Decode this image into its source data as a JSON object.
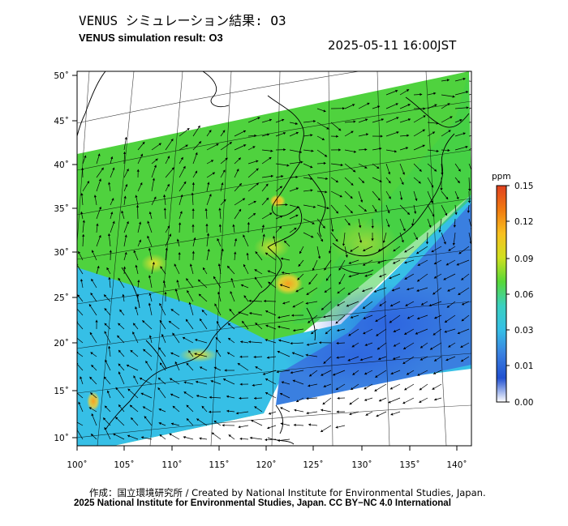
{
  "title_jp": "VENUS シミュレーション結果: O3",
  "title_en": "VENUS simulation result: O3",
  "timestamp": "2025-05-11 16:00JST",
  "map": {
    "lon_ticks": [
      "100˚",
      "105˚",
      "110˚",
      "115˚",
      "120˚",
      "125˚",
      "130˚",
      "135˚",
      "140˚"
    ],
    "lat_ticks": [
      "10˚",
      "15˚",
      "20˚",
      "25˚",
      "30˚",
      "35˚",
      "40˚",
      "45˚",
      "50˚"
    ],
    "lon_range": [
      100,
      141
    ],
    "lat_range": [
      9,
      50.5
    ],
    "colors": {
      "background_polluted": "#58d838",
      "background_clean": "#36bfe6",
      "ocean_low": "#3a80e0",
      "hotspot": "#f8c020",
      "frame": "#000000"
    }
  },
  "colorbar": {
    "unit": "ppm",
    "ticks": [
      "0.15",
      "0.12",
      "0.09",
      "0.06",
      "0.03",
      "0.01",
      "0.00"
    ],
    "gradient": [
      "#e04020",
      "#f07a10",
      "#f8c020",
      "#d0e020",
      "#58d838",
      "#3ad0c0",
      "#36bfe6",
      "#3a80e0",
      "#2050d0",
      "#ffffff"
    ]
  },
  "credits": {
    "line1": "作成：国立環境研究所 / Created by National Institute for Environmental Studies, Japan.",
    "line2": "2025 National Institute for Environmental Studies, Japan. CC BY−NC 4.0 International"
  }
}
